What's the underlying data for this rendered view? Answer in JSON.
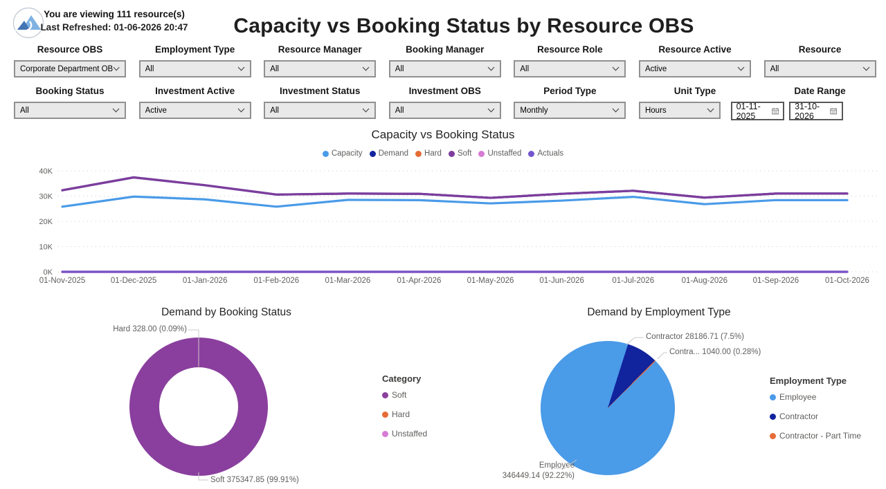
{
  "header": {
    "viewing_text": "You are viewing 111 resource(s)",
    "refresh_text": "Last Refreshed: 01-06-2026 20:47",
    "title": "Capacity vs Booking Status by Resource OBS"
  },
  "filters": {
    "row1": [
      {
        "label": "Resource OBS",
        "value": "Corporate Department OB..."
      },
      {
        "label": "Employment Type",
        "value": "All"
      },
      {
        "label": "Resource Manager",
        "value": "All"
      },
      {
        "label": "Booking Manager",
        "value": "All"
      },
      {
        "label": "Resource Role",
        "value": "All"
      },
      {
        "label": "Resource Active",
        "value": "Active"
      },
      {
        "label": "Resource",
        "value": "All"
      }
    ],
    "row2": [
      {
        "label": "Booking Status",
        "value": "All"
      },
      {
        "label": "Investment Active",
        "value": "Active"
      },
      {
        "label": "Investment Status",
        "value": "All"
      },
      {
        "label": "Investment OBS",
        "value": "All"
      },
      {
        "label": "Period Type",
        "value": "Monthly"
      },
      {
        "label": "Unit Type",
        "value": "Hours"
      }
    ],
    "date_range": {
      "label": "Date Range",
      "start": "01-11-2025",
      "end": "31-10-2026"
    }
  },
  "chart_data": [
    {
      "type": "line",
      "title": "Capacity vs Booking Status",
      "categories": [
        "01-Nov-2025",
        "01-Dec-2025",
        "01-Jan-2026",
        "01-Feb-2026",
        "01-Mar-2026",
        "01-Apr-2026",
        "01-May-2026",
        "01-Jun-2026",
        "01-Jul-2026",
        "01-Aug-2026",
        "01-Sep-2026",
        "01-Oct-2026"
      ],
      "yticks": [
        "0K",
        "10K",
        "20K",
        "30K",
        "40K"
      ],
      "ylim": [
        0,
        40000
      ],
      "grid": "dotted",
      "legend_position": "top",
      "series": [
        {
          "name": "Capacity",
          "color": "#4A9BE8",
          "values": [
            25800,
            29800,
            28700,
            25800,
            28500,
            28400,
            27100,
            28200,
            29700,
            26800,
            28400,
            28400
          ]
        },
        {
          "name": "Demand",
          "color": "#12239E",
          "values": [
            32300,
            37400,
            34300,
            30600,
            31000,
            30900,
            29300,
            30900,
            32100,
            29400,
            31000,
            31000
          ]
        },
        {
          "name": "Hard",
          "color": "#E66C37",
          "values": [
            0,
            0,
            0,
            0,
            0,
            0,
            0,
            0,
            0,
            0,
            0,
            0
          ]
        },
        {
          "name": "Soft",
          "color": "#7E3D9C",
          "values": [
            32300,
            37400,
            34300,
            30600,
            31000,
            30900,
            29300,
            30900,
            32100,
            29400,
            31000,
            31000
          ]
        },
        {
          "name": "Unstaffed",
          "color": "#D77BD5",
          "values": [
            0,
            0,
            0,
            0,
            0,
            0,
            0,
            0,
            0,
            0,
            0,
            0
          ]
        },
        {
          "name": "Actuals",
          "color": "#7455CD",
          "values": [
            0,
            0,
            0,
            0,
            0,
            0,
            0,
            0,
            0,
            0,
            0,
            0
          ]
        }
      ]
    },
    {
      "type": "pie",
      "subtype": "donut",
      "title": "Demand by Booking Status",
      "legend_title": "Category",
      "start_angle": 0,
      "slices": [
        {
          "label": "Soft",
          "value": 375347.85,
          "pct": 99.91,
          "color": "#8A3F9E"
        },
        {
          "label": "Hard",
          "value": 328.0,
          "pct": 0.09,
          "color": "#E66C37"
        },
        {
          "label": "Unstaffed",
          "value": 0,
          "pct": 0,
          "color": "#D77BD5"
        }
      ],
      "callouts": {
        "hard": "Hard 328.00 (0.09%)",
        "soft": "Soft 375347.85 (99.91%)"
      }
    },
    {
      "type": "pie",
      "title": "Demand by Employment Type",
      "legend_title": "Employment Type",
      "start_angle": 45.6,
      "slices": [
        {
          "label": "Employee",
          "value": 346449.14,
          "pct": 92.22,
          "color": "#4A9BE8"
        },
        {
          "label": "Contractor",
          "value": 28186.71,
          "pct": 7.5,
          "color": "#12239E"
        },
        {
          "label": "Contractor - Part Time",
          "value": 1040.0,
          "pct": 0.28,
          "color": "#E66C37"
        }
      ],
      "callouts": {
        "contractor": "Contractor 28186.71 (7.5%)",
        "part_time": "Contra... 1040.00 (0.28%)",
        "employee_line1": "Employee",
        "employee_line2": "346449.14 (92.22%)"
      }
    }
  ]
}
